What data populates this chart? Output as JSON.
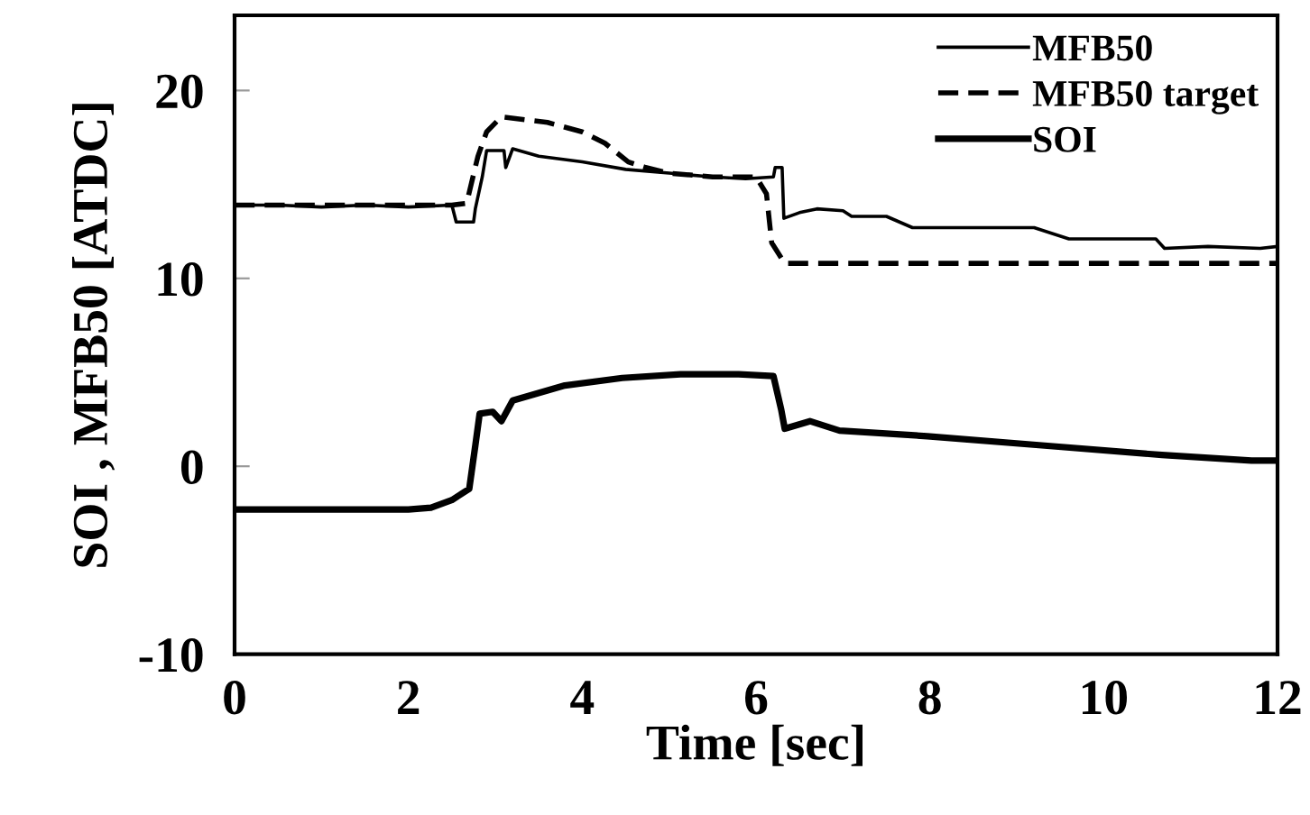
{
  "chart_data": {
    "type": "line",
    "xlabel": "Time [sec]",
    "ylabel": "SOI , MFB50 [ATDC]",
    "xlim": [
      0,
      12
    ],
    "xticks": [
      0,
      2,
      4,
      6,
      8,
      10,
      12
    ],
    "ylim": [
      -10,
      24
    ],
    "yticks": [
      -10,
      0,
      10,
      20
    ],
    "grid": false,
    "legend": "top right",
    "marker": "none",
    "series": [
      {
        "name": "MFB50",
        "color": "#000000",
        "line_style": "solid",
        "x": [
          0,
          0.5,
          1,
          1.5,
          2,
          2.5,
          2.55,
          2.75,
          2.77,
          2.85,
          2.9,
          3.1,
          3.12,
          3.2,
          3.5,
          4.0,
          4.5,
          5.0,
          5.5,
          5.88,
          6.2,
          6.22,
          6.3,
          6.32,
          6.5,
          6.7,
          7.0,
          7.1,
          7.5,
          7.8,
          8.5,
          9.2,
          9.6,
          10.0,
          10.6,
          10.7,
          11.2,
          11.8,
          12
        ],
        "values": [
          13.9,
          13.9,
          13.8,
          13.9,
          13.8,
          13.9,
          13.0,
          13.0,
          13.7,
          15.4,
          16.8,
          16.8,
          15.9,
          16.9,
          16.5,
          16.2,
          15.8,
          15.6,
          15.4,
          15.3,
          15.4,
          15.9,
          15.9,
          13.2,
          13.5,
          13.7,
          13.6,
          13.3,
          13.3,
          12.7,
          12.7,
          12.7,
          12.1,
          12.1,
          12.1,
          11.6,
          11.7,
          11.6,
          11.7
        ]
      },
      {
        "name": "MFB50 target",
        "color": "#000000",
        "line_style": "dashed",
        "x": [
          0,
          2.5,
          2.67,
          2.8,
          2.9,
          3.07,
          3.6,
          4.0,
          4.26,
          4.53,
          4.73,
          5.0,
          5.5,
          6.0,
          6.12,
          6.18,
          6.33,
          7.0,
          8.0,
          9.0,
          10.0,
          11.0,
          12
        ],
        "values": [
          13.9,
          13.9,
          14.0,
          16.5,
          17.8,
          18.6,
          18.3,
          17.8,
          17.2,
          16.2,
          15.9,
          15.6,
          15.4,
          15.4,
          14.5,
          11.9,
          10.8,
          10.8,
          10.8,
          10.8,
          10.8,
          10.8,
          10.8
        ]
      },
      {
        "name": "SOI",
        "color": "#000000",
        "line_style": "solid",
        "x": [
          0,
          1,
          2,
          2.26,
          2.5,
          2.7,
          2.77,
          2.82,
          2.97,
          3.07,
          3.2,
          3.8,
          4.46,
          5.13,
          5.8,
          6.2,
          6.29,
          6.33,
          6.62,
          6.96,
          7.97,
          9.32,
          10.67,
          11.7,
          12
        ],
        "values": [
          -2.3,
          -2.3,
          -2.3,
          -2.2,
          -1.8,
          -1.2,
          1.1,
          2.8,
          2.9,
          2.4,
          3.5,
          4.3,
          4.7,
          4.9,
          4.9,
          4.8,
          3.0,
          2.0,
          2.4,
          1.9,
          1.6,
          1.1,
          0.6,
          0.3,
          0.3
        ]
      }
    ]
  }
}
